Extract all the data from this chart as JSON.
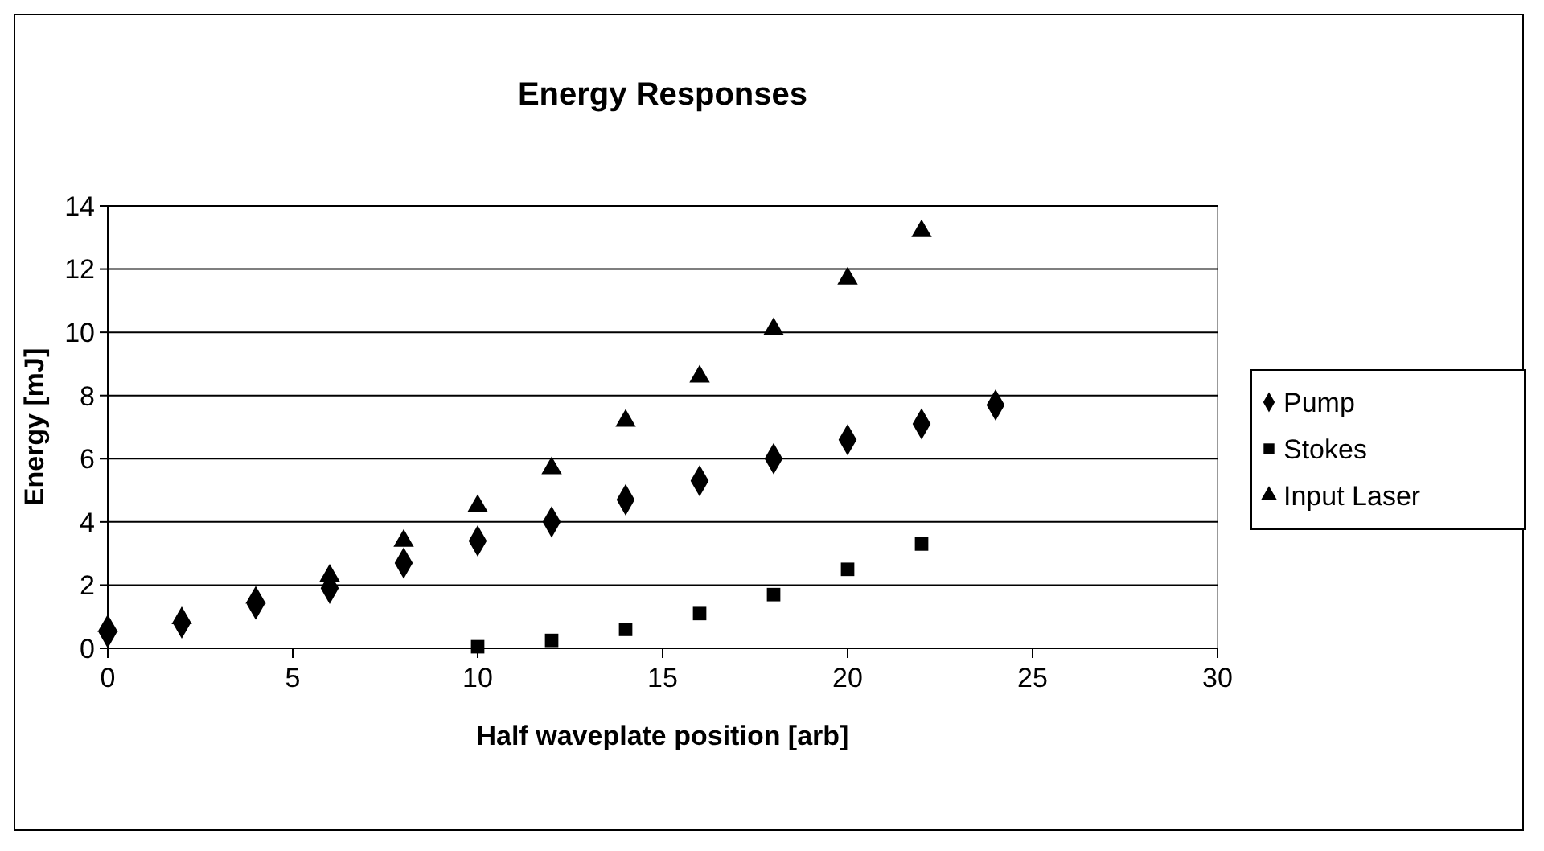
{
  "chart_data": {
    "type": "scatter",
    "title": "Energy Responses",
    "xlabel": "Half waveplate position [arb]",
    "ylabel": "Energy [mJ]",
    "xlim": [
      0,
      30
    ],
    "xticks": [
      0,
      5,
      10,
      15,
      20,
      25,
      30
    ],
    "ylim": [
      0,
      14
    ],
    "yticks": [
      0,
      2,
      4,
      6,
      8,
      10,
      12,
      14
    ],
    "grid": "y",
    "legend": "right",
    "series": [
      {
        "name": "Pump",
        "color": "#000000",
        "marker": "diamond",
        "x": [
          0,
          2,
          4,
          6,
          8,
          10,
          12,
          14,
          16,
          18,
          20,
          22,
          24
        ],
        "values": [
          0.5,
          0.8,
          1.4,
          1.9,
          2.7,
          3.4,
          4.0,
          4.7,
          5.3,
          6.0,
          6.6,
          7.1,
          7.7
        ]
      },
      {
        "name": "Stokes",
        "color": "#000000",
        "marker": "square",
        "x": [
          10,
          12,
          14,
          16,
          18,
          20,
          22
        ],
        "values": [
          0.05,
          0.25,
          0.6,
          1.1,
          1.7,
          2.5,
          3.3
        ]
      },
      {
        "name": "Input Laser",
        "color": "#000000",
        "marker": "triangle",
        "x": [
          0,
          2,
          4,
          6,
          8,
          10,
          12,
          14,
          16,
          18,
          20,
          22
        ],
        "values": [
          0.7,
          0.95,
          1.6,
          2.3,
          3.4,
          4.5,
          5.7,
          7.2,
          8.6,
          10.1,
          11.7,
          13.2
        ]
      }
    ]
  }
}
